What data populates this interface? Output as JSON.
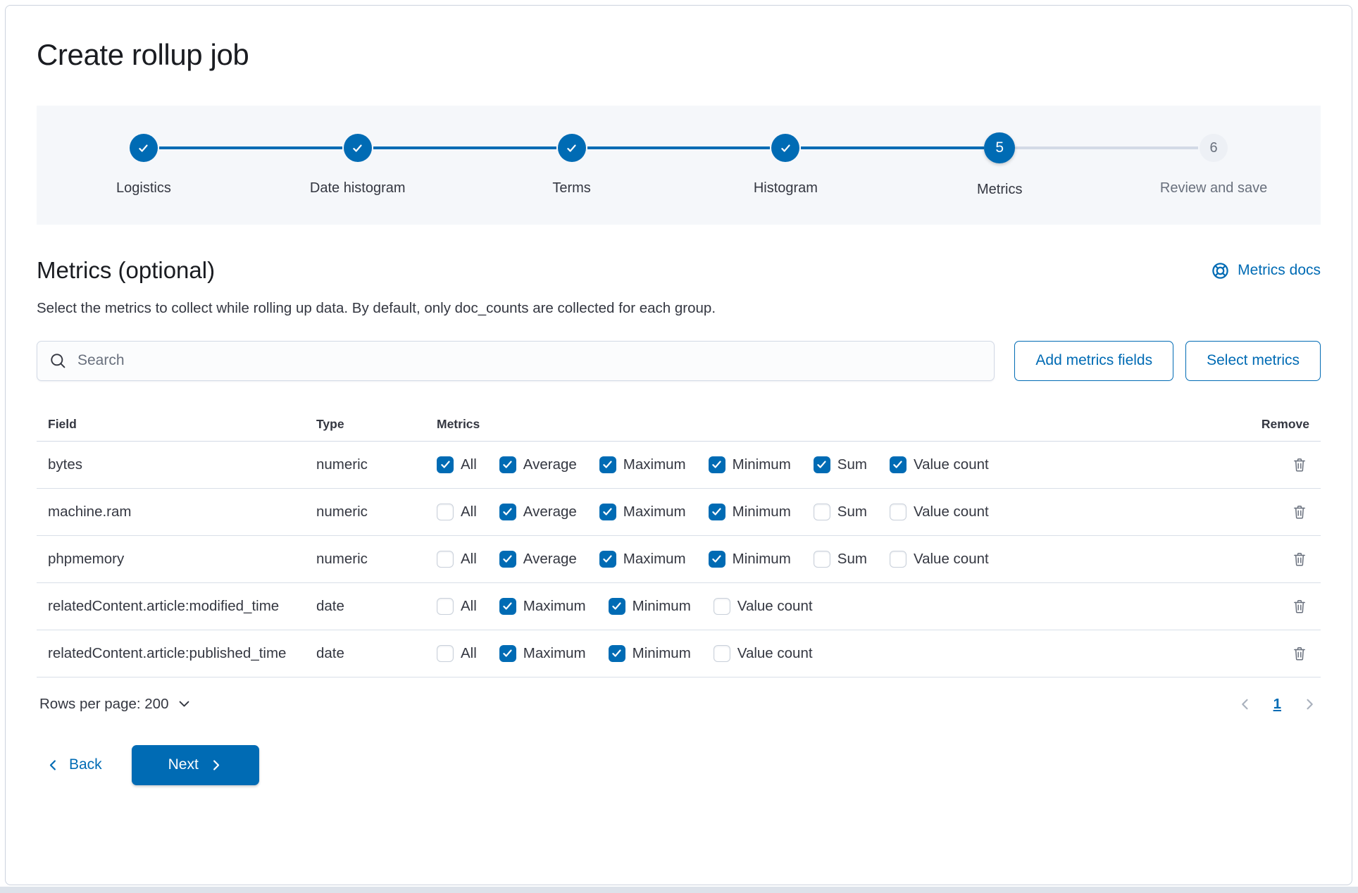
{
  "page": {
    "title": "Create rollup job"
  },
  "colors": {
    "primary": "#006BB4",
    "text": "#343741",
    "muted_text": "#69707D",
    "border": "#D3DAE6",
    "stepper_bg": "#F5F7FA",
    "incomplete_circle_bg": "#EDF0F5",
    "disabled_chevron": "#98A2B3"
  },
  "icons": {
    "docs": "life-ring-icon",
    "search": "magnifier-icon",
    "step_complete": "check-icon",
    "remove": "trash-icon",
    "rows_per_page": "chevron-down-icon",
    "prev_page": "chevron-left-icon",
    "next_page": "chevron-right-icon",
    "back": "chevron-left-icon",
    "next": "chevron-right-icon"
  },
  "stepper": {
    "steps": [
      {
        "label": "Logistics",
        "status": "complete"
      },
      {
        "label": "Date histogram",
        "status": "complete"
      },
      {
        "label": "Terms",
        "status": "complete"
      },
      {
        "label": "Histogram",
        "status": "complete"
      },
      {
        "label": "Metrics",
        "status": "current",
        "number": "5"
      },
      {
        "label": "Review and save",
        "status": "incomplete",
        "number": "6"
      }
    ]
  },
  "section": {
    "heading": "Metrics (optional)",
    "docs_link": "Metrics docs",
    "description": "Select the metrics to collect while rolling up data. By default, only doc_counts are collected for each group."
  },
  "toolbar": {
    "search_placeholder": "Search",
    "add_button": "Add metrics fields",
    "select_button": "Select metrics"
  },
  "table": {
    "headers": {
      "field": "Field",
      "type": "Type",
      "metrics": "Metrics",
      "remove": "Remove"
    },
    "rows": [
      {
        "field": "bytes",
        "type": "numeric",
        "metrics": [
          {
            "label": "All",
            "checked": true
          },
          {
            "label": "Average",
            "checked": true
          },
          {
            "label": "Maximum",
            "checked": true
          },
          {
            "label": "Minimum",
            "checked": true
          },
          {
            "label": "Sum",
            "checked": true
          },
          {
            "label": "Value count",
            "checked": true
          }
        ]
      },
      {
        "field": "machine.ram",
        "type": "numeric",
        "metrics": [
          {
            "label": "All",
            "checked": false
          },
          {
            "label": "Average",
            "checked": true
          },
          {
            "label": "Maximum",
            "checked": true
          },
          {
            "label": "Minimum",
            "checked": true
          },
          {
            "label": "Sum",
            "checked": false
          },
          {
            "label": "Value count",
            "checked": false
          }
        ]
      },
      {
        "field": "phpmemory",
        "type": "numeric",
        "metrics": [
          {
            "label": "All",
            "checked": false
          },
          {
            "label": "Average",
            "checked": true
          },
          {
            "label": "Maximum",
            "checked": true
          },
          {
            "label": "Minimum",
            "checked": true
          },
          {
            "label": "Sum",
            "checked": false
          },
          {
            "label": "Value count",
            "checked": false
          }
        ]
      },
      {
        "field": "relatedContent.article:modified_time",
        "type": "date",
        "metrics": [
          {
            "label": "All",
            "checked": false
          },
          {
            "label": "Maximum",
            "checked": true
          },
          {
            "label": "Minimum",
            "checked": true
          },
          {
            "label": "Value count",
            "checked": false
          }
        ]
      },
      {
        "field": "relatedContent.article:published_time",
        "type": "date",
        "metrics": [
          {
            "label": "All",
            "checked": false
          },
          {
            "label": "Maximum",
            "checked": true
          },
          {
            "label": "Minimum",
            "checked": true
          },
          {
            "label": "Value count",
            "checked": false
          }
        ]
      }
    ]
  },
  "pagination": {
    "rows_per_page": "Rows per page: 200",
    "page": "1"
  },
  "footer": {
    "back_label": "Back",
    "next_label": "Next"
  }
}
